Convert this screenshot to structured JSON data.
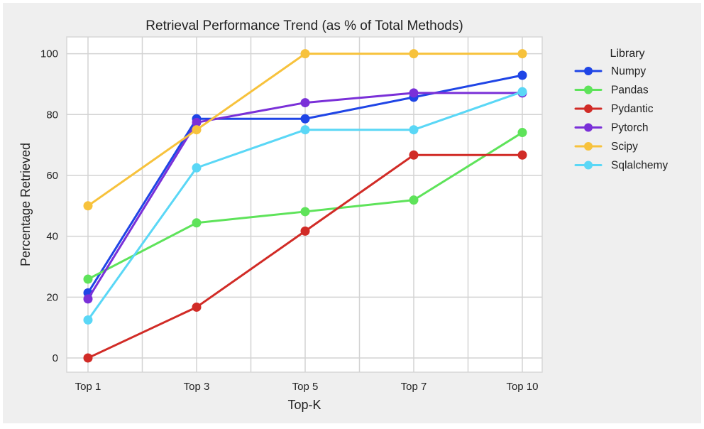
{
  "chart_data": {
    "type": "line",
    "title": "Retrieval Performance Trend (as % of Total Methods)",
    "xlabel": "Top-K",
    "ylabel": "Percentage Retrieved",
    "categories": [
      "Top 1",
      "Top 3",
      "Top 5",
      "Top 7",
      "Top 10"
    ],
    "ylim": [
      -5,
      105
    ],
    "yticks": [
      0,
      20,
      40,
      60,
      80,
      100
    ],
    "grid": true,
    "legend": {
      "title": "Library",
      "placement": "outside-right"
    },
    "series": [
      {
        "name": "Numpy",
        "color": "#1f45e6",
        "values": [
          21.4,
          78.6,
          78.6,
          85.7,
          92.9
        ]
      },
      {
        "name": "Pandas",
        "color": "#5ee35a",
        "values": [
          25.9,
          44.4,
          48.1,
          51.9,
          74.1
        ]
      },
      {
        "name": "Pydantic",
        "color": "#d12b26",
        "values": [
          0.0,
          16.7,
          41.7,
          66.7,
          66.7
        ]
      },
      {
        "name": "Pytorch",
        "color": "#7a30d8",
        "values": [
          19.4,
          77.4,
          83.9,
          87.1,
          87.1
        ]
      },
      {
        "name": "Scipy",
        "color": "#f7c23c",
        "values": [
          50.0,
          75.0,
          100.0,
          100.0,
          100.0
        ]
      },
      {
        "name": "Sqlalchemy",
        "color": "#5ad7f6",
        "values": [
          12.5,
          62.5,
          75.0,
          75.0,
          87.5
        ]
      }
    ]
  }
}
